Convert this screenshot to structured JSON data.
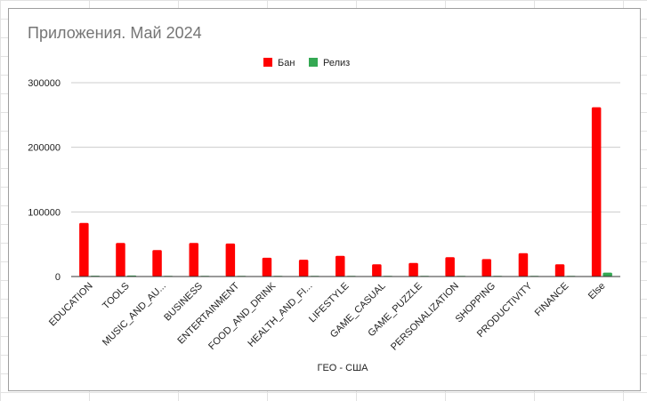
{
  "chart_data": {
    "type": "bar",
    "title": "Приложения. Май 2024",
    "xlabel": "ГЕО - США",
    "ylabel": "",
    "ylim": [
      0,
      300000
    ],
    "yticks": [
      "0",
      "100000",
      "200000",
      "300000"
    ],
    "grid": true,
    "legend_position": "top",
    "categories": [
      "EDUCATION",
      "TOOLS",
      "MUSIC_AND_AU...",
      "BUSINESS",
      "ENTERTAINMENT",
      "FOOD_AND_DRINK",
      "HEALTH_AND_FI...",
      "LIFESTYLE",
      "GAME_CASUAL",
      "GAME_PUZZLE",
      "PERSONALIZATION",
      "SHOPPING",
      "PRODUCTIVITY",
      "FINANCE",
      "Else"
    ],
    "series": [
      {
        "name": "Бан",
        "color": "#ff0000",
        "values": [
          83000,
          52000,
          41000,
          52000,
          51000,
          29000,
          26000,
          32000,
          19000,
          21000,
          30000,
          27000,
          36000,
          19000,
          262000
        ]
      },
      {
        "name": "Релиз",
        "color": "#34a853",
        "values": [
          1200,
          1500,
          300,
          300,
          300,
          300,
          300,
          300,
          300,
          300,
          300,
          300,
          300,
          300,
          6000
        ]
      }
    ]
  }
}
